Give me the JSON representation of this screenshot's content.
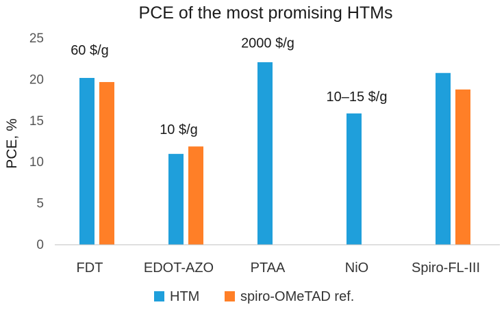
{
  "chart_data": {
    "type": "bar",
    "title": "PCE of the most promising HTMs",
    "xlabel": "",
    "ylabel": "PCE, %",
    "ylim": [
      0,
      25
    ],
    "yticks": [
      "0",
      "5",
      "10",
      "15",
      "20",
      "25"
    ],
    "grid": false,
    "legend_position": "bottom",
    "categories": [
      "FDT",
      "EDOT-AZO",
      "PTAA",
      "NiO",
      "Spiro-FL-III"
    ],
    "series": [
      {
        "name": "HTM",
        "color": "#1f9fdb",
        "values": [
          20.2,
          11.0,
          22.1,
          15.9,
          20.8
        ]
      },
      {
        "name": "spiro-OMeTAD ref.",
        "color": "#ff7f27",
        "values": [
          19.7,
          11.9,
          null,
          null,
          18.8
        ]
      }
    ],
    "annotations": [
      {
        "category": "FDT",
        "text": "60 $/g",
        "y": 23.0
      },
      {
        "category": "EDOT-AZO",
        "text": "10 $/g",
        "y": 13.4
      },
      {
        "category": "PTAA",
        "text": "2000 $/g",
        "y": 23.9
      },
      {
        "category": "NiO",
        "text": "10–15 $/g",
        "y": 17.4
      }
    ]
  }
}
